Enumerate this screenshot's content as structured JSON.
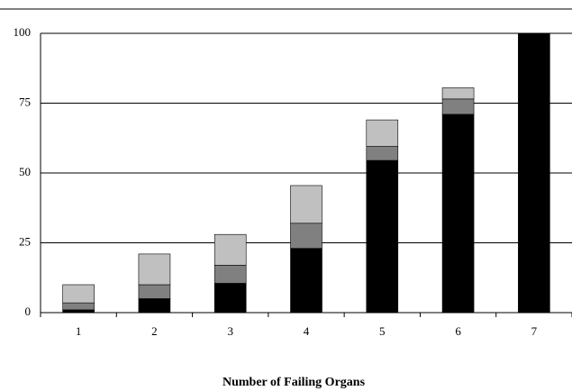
{
  "chart_data": {
    "type": "stacked-bar",
    "x_label": "Number of Failing Organs",
    "categories": [
      "1",
      "2",
      "3",
      "4",
      "5",
      "6",
      "7"
    ],
    "series": [
      {
        "color": "#000000",
        "values": [
          1,
          5,
          10.5,
          23,
          54.5,
          71,
          100
        ]
      },
      {
        "color": "#808080",
        "values": [
          2.5,
          5,
          6.5,
          9,
          5,
          5.5,
          0
        ]
      },
      {
        "color": "#c0c0c0",
        "values": [
          6.5,
          11,
          11,
          13.5,
          9.5,
          4,
          0
        ]
      }
    ],
    "ylim": [
      0,
      100
    ],
    "yticks": [
      0,
      25,
      50,
      75,
      100
    ],
    "grid": true
  }
}
